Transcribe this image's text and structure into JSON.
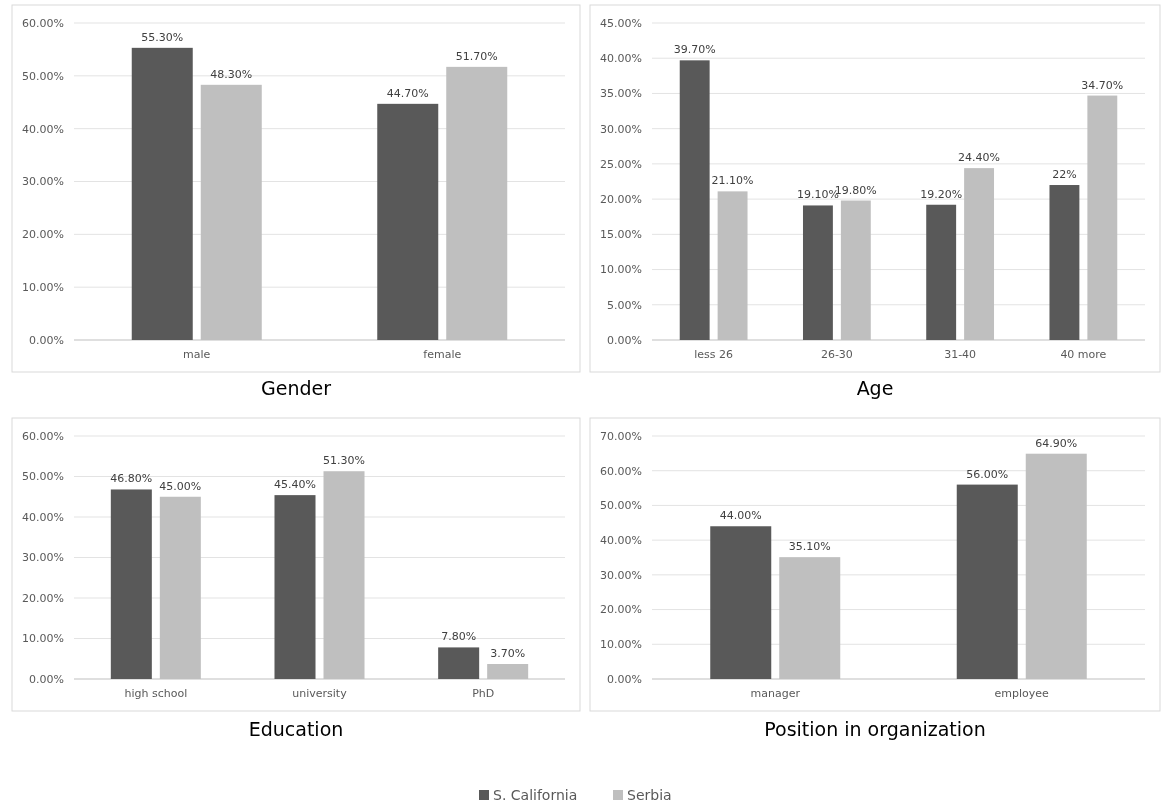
{
  "chart_data": [
    {
      "type": "bar",
      "title": "Gender",
      "categories": [
        "male",
        "female"
      ],
      "series": [
        {
          "color": "#595959",
          "values": [
            55.3,
            44.7
          ],
          "value_labels": [
            "55.30%",
            "44.70%"
          ]
        },
        {
          "color": "#bfbfbf",
          "values": [
            48.3,
            51.7
          ],
          "value_labels": [
            "48.30%",
            "51.70%"
          ]
        }
      ],
      "ylim": [
        0,
        60
      ],
      "yticks": [
        {
          "value": 0,
          "label": "0.00%"
        },
        {
          "value": 10,
          "label": "10.00%"
        },
        {
          "value": 20,
          "label": "20.00%"
        },
        {
          "value": 30,
          "label": "30.00%"
        },
        {
          "value": 40,
          "label": "40.00%"
        },
        {
          "value": 50,
          "label": "50.00%"
        },
        {
          "value": 60,
          "label": "60.00%"
        }
      ],
      "grid": "y"
    },
    {
      "type": "bar",
      "title": "Age",
      "categories": [
        "less 26",
        "26-30",
        "31-40",
        "40 more"
      ],
      "series": [
        {
          "color": "#595959",
          "values": [
            39.7,
            19.1,
            19.2,
            22
          ],
          "value_labels": [
            "39.70%",
            "19.10%",
            "19.20%",
            "22%"
          ]
        },
        {
          "color": "#bfbfbf",
          "values": [
            21.1,
            19.8,
            24.4,
            34.7
          ],
          "value_labels": [
            "21.10%",
            "19.80%",
            "24.40%",
            "34.70%"
          ]
        }
      ],
      "ylim": [
        0,
        45
      ],
      "yticks": [
        {
          "value": 0,
          "label": "0.00%"
        },
        {
          "value": 5,
          "label": "5.00%"
        },
        {
          "value": 10,
          "label": "10.00%"
        },
        {
          "value": 15,
          "label": "15.00%"
        },
        {
          "value": 20,
          "label": "20.00%"
        },
        {
          "value": 25,
          "label": "25.00%"
        },
        {
          "value": 30,
          "label": "30.00%"
        },
        {
          "value": 35,
          "label": "35.00%"
        },
        {
          "value": 40,
          "label": "40.00%"
        },
        {
          "value": 45,
          "label": "45.00%"
        }
      ],
      "grid": "y"
    },
    {
      "type": "bar",
      "title": "Education",
      "categories": [
        "high school",
        "university",
        "PhD"
      ],
      "series": [
        {
          "color": "#595959",
          "values": [
            46.8,
            45.4,
            7.8
          ],
          "value_labels": [
            "46.80%",
            "45.40%",
            "7.80%"
          ]
        },
        {
          "color": "#bfbfbf",
          "values": [
            45,
            51.3,
            3.7
          ],
          "value_labels": [
            "45.00%",
            "51.30%",
            "3.70%"
          ]
        }
      ],
      "ylim": [
        0,
        60
      ],
      "yticks": [
        {
          "value": 0,
          "label": "0.00%"
        },
        {
          "value": 10,
          "label": "10.00%"
        },
        {
          "value": 20,
          "label": "20.00%"
        },
        {
          "value": 30,
          "label": "30.00%"
        },
        {
          "value": 40,
          "label": "40.00%"
        },
        {
          "value": 50,
          "label": "50.00%"
        },
        {
          "value": 60,
          "label": "60.00%"
        }
      ],
      "grid": "y"
    },
    {
      "type": "bar",
      "title": "Position in organization",
      "categories": [
        "manager",
        "employee"
      ],
      "series": [
        {
          "name": "S. California",
          "color": "#595959",
          "values": [
            44,
            56
          ],
          "value_labels": [
            "44.00%",
            "56.00%"
          ]
        },
        {
          "name": "Serbia",
          "color": "#bfbfbf",
          "values": [
            35.1,
            64.9
          ],
          "value_labels": [
            "35.10%",
            "64.90%"
          ]
        }
      ],
      "ylim": [
        0,
        70
      ],
      "yticks": [
        {
          "value": 0,
          "label": "0.00%"
        },
        {
          "value": 10,
          "label": "10.00%"
        },
        {
          "value": 20,
          "label": "20.00%"
        },
        {
          "value": 30,
          "label": "30.00%"
        },
        {
          "value": 40,
          "label": "40.00%"
        },
        {
          "value": 50,
          "label": "50.00%"
        },
        {
          "value": 60,
          "label": "60.00%"
        },
        {
          "value": 70,
          "label": "70.00%"
        }
      ],
      "grid": "y",
      "legend": "bottom"
    }
  ]
}
